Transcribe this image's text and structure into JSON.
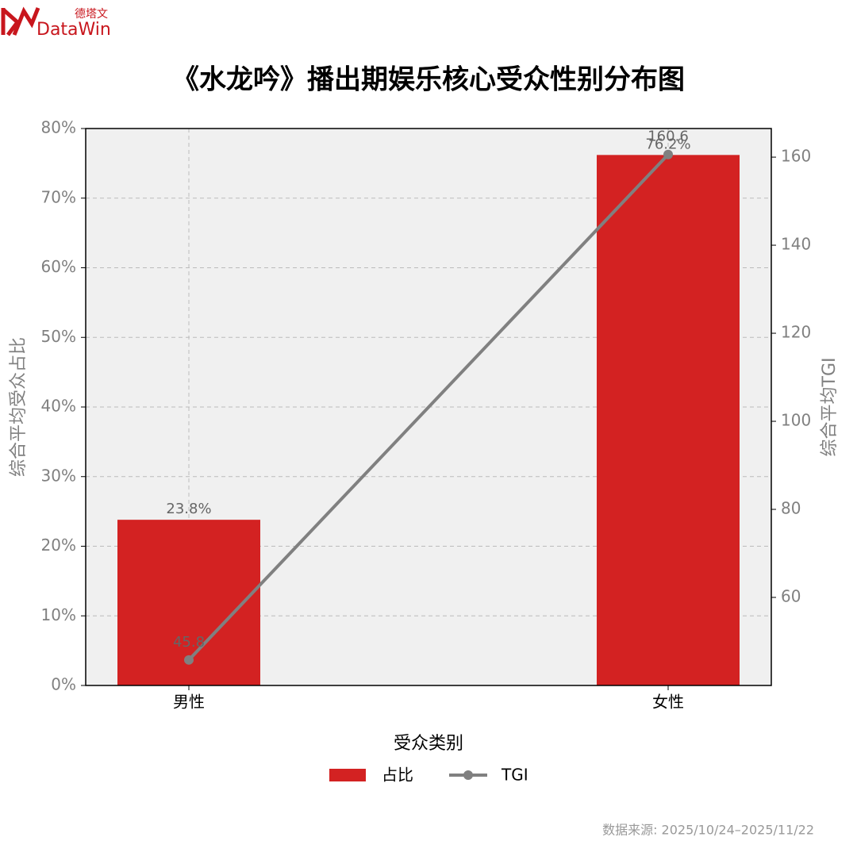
{
  "logo": {
    "cn": "德塔文",
    "en": "DataWin"
  },
  "chart_data": {
    "type": "bar",
    "title": "《水龙吟》播出期娱乐核心受众性别分布图",
    "categories": [
      "男性",
      "女性"
    ],
    "xlabel": "受众类别",
    "ylabel": "综合平均受众占比",
    "y2label": "综合平均TGI",
    "ylim": [
      0,
      80
    ],
    "yticks": [
      {
        "value": 0,
        "label": "0%"
      },
      {
        "value": 10,
        "label": "10%"
      },
      {
        "value": 20,
        "label": "20%"
      },
      {
        "value": 30,
        "label": "30%"
      },
      {
        "value": 40,
        "label": "40%"
      },
      {
        "value": 50,
        "label": "50%"
      },
      {
        "value": 60,
        "label": "60%"
      },
      {
        "value": 70,
        "label": "70%"
      },
      {
        "value": 80,
        "label": "80%"
      }
    ],
    "y2lim": [
      40,
      166.5
    ],
    "y2ticks": [
      60,
      80,
      100,
      120,
      140,
      160
    ],
    "grid": true,
    "legend": "bottom",
    "series": [
      {
        "name": "占比",
        "type": "bar",
        "color": "#d32222",
        "values": [
          23.8,
          76.2
        ],
        "value_labels": [
          "23.8%",
          "76.2%"
        ]
      },
      {
        "name": "TGI",
        "type": "line",
        "axis": "y2",
        "color": "#808080",
        "values": [
          45.8,
          160.6
        ]
      }
    ],
    "source": "数据来源: 2025/10/24–2025/11/22"
  }
}
